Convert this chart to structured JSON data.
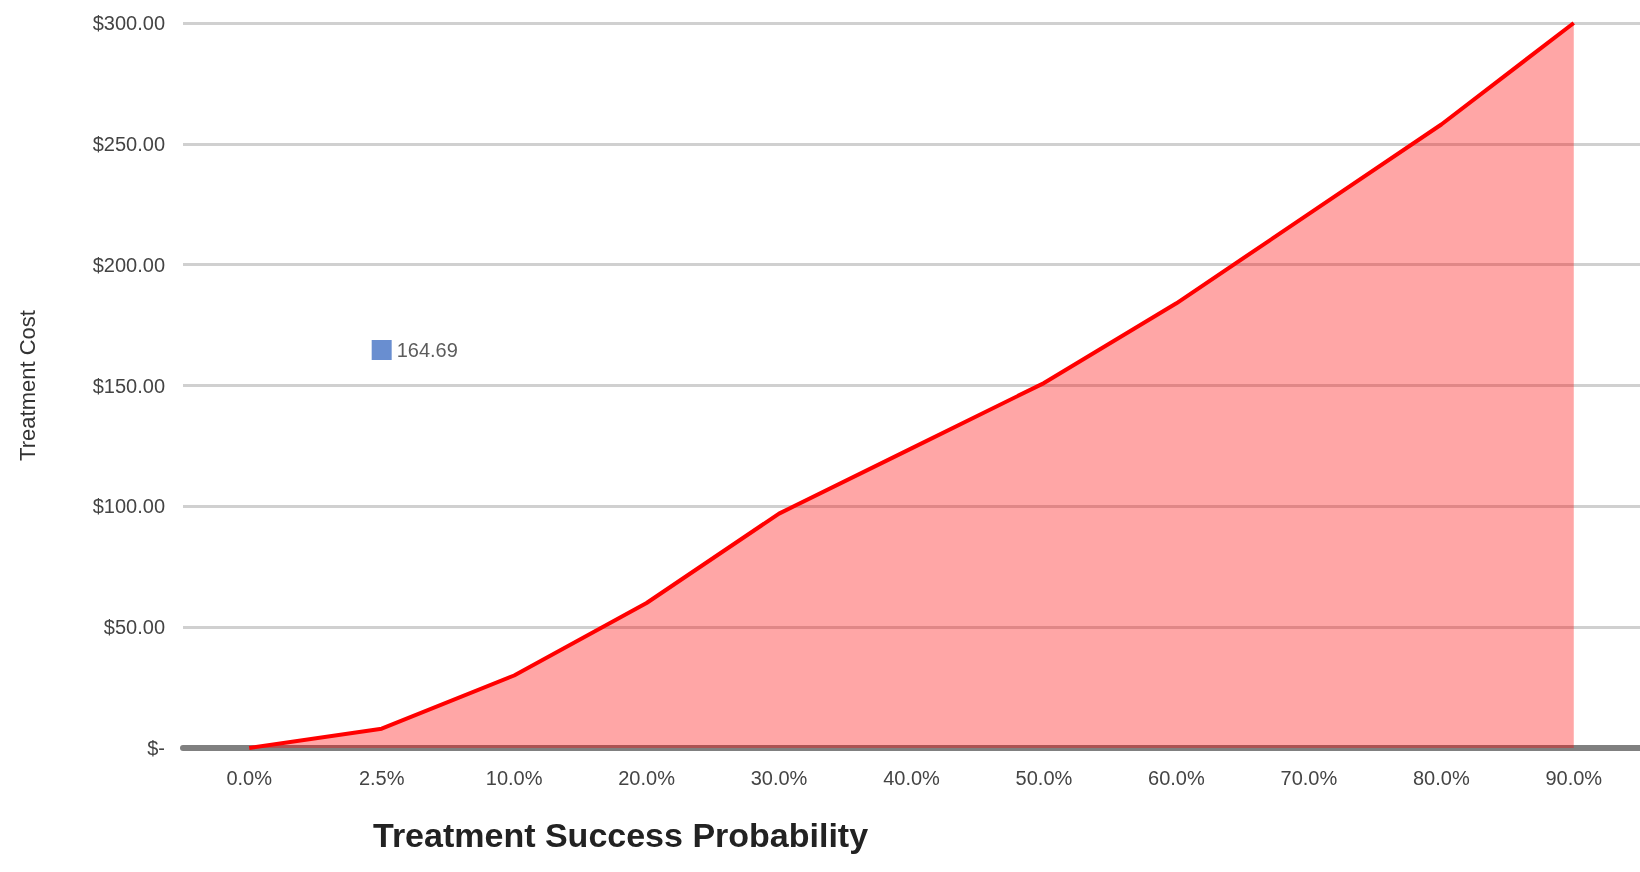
{
  "chart_data": {
    "type": "area",
    "xlabel": "Treatment Success Probability",
    "ylabel": "Treatment Cost",
    "categories": [
      "0.0%",
      "2.5%",
      "10.0%",
      "20.0%",
      "30.0%",
      "40.0%",
      "50.0%",
      "60.0%",
      "70.0%",
      "80.0%",
      "90.0%"
    ],
    "series": [
      {
        "color": "#ff0000",
        "values": [
          0,
          8,
          30,
          60,
          97,
          124,
          151,
          184,
          221,
          258,
          300
        ]
      },
      {
        "type": "scatter",
        "color": "#4472c4",
        "marker": "square",
        "x": [
          "2.5%"
        ],
        "values": [
          164.69
        ],
        "value_labels": [
          "164.69"
        ]
      }
    ],
    "ylim": [
      0,
      300
    ],
    "yticks": [
      {
        "value": 0,
        "label": "$-"
      },
      {
        "value": 50,
        "label": "$50.00"
      },
      {
        "value": 100,
        "label": "$100.00"
      },
      {
        "value": 150,
        "label": "$150.00"
      },
      {
        "value": 200,
        "label": "$200.00"
      },
      {
        "value": 250,
        "label": "$250.00"
      },
      {
        "value": 300,
        "label": "$300.00"
      }
    ],
    "grid": "y"
  }
}
